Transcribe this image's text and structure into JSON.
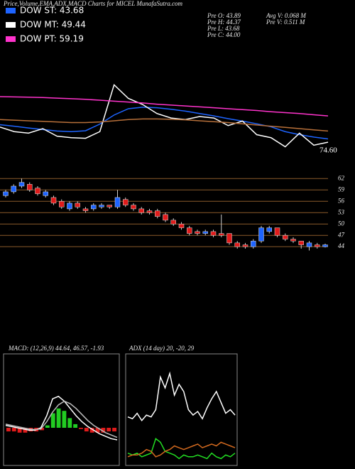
{
  "chart_data": [
    {
      "type": "line",
      "title": "Price,Volume,EMA,ADX,MACD Charts for MICEL MunafaSutra.com",
      "stats": [
        "Pre O: 43.89",
        "Pre H: 44.37",
        "Pre L: 43.68",
        "Pre C: 44.00",
        "Avg V: 0.068 M",
        "Pre V: 0.511 M"
      ],
      "annotation": "74.60",
      "ylim": [
        74,
        110
      ],
      "series": [
        {
          "name": "DOW ST: 43.68",
          "color": "#1e64ff",
          "values": [
            83.3,
            82.8,
            82.2,
            81.7,
            81.2,
            81.0,
            81.3,
            83.5,
            86.5,
            88.6,
            89.1,
            88.9,
            88.4,
            87.8,
            87.0,
            86.2,
            85.3,
            84.5,
            83.6,
            82.6,
            81.0,
            80.0,
            79.2,
            78.6
          ]
        },
        {
          "name": "DOW MT: 49.44",
          "color": "#ffffff",
          "values": [
            82.5,
            81.0,
            80.5,
            82.0,
            79.5,
            79.0,
            78.8,
            81.0,
            96.5,
            92.0,
            90.0,
            87.0,
            85.5,
            85.0,
            86.0,
            85.5,
            83.0,
            84.5,
            80.0,
            79.0,
            76.0,
            80.5,
            76.5,
            77.5
          ]
        },
        {
          "name": "DOW PT: 59.19",
          "color": "#ff33cc",
          "values": [
            92.6,
            92.5,
            92.4,
            92.3,
            92.1,
            91.9,
            91.7,
            91.4,
            91.1,
            90.8,
            90.5,
            90.1,
            89.8,
            89.5,
            89.2,
            88.9,
            88.6,
            88.3,
            88.0,
            87.6,
            87.3,
            87.0,
            86.6,
            86.2
          ]
        },
        {
          "color": "#b8703a",
          "values": [
            85.0,
            84.8,
            84.6,
            84.4,
            84.2,
            84.0,
            84.0,
            84.2,
            84.6,
            85.0,
            85.2,
            85.2,
            85.1,
            84.9,
            84.6,
            84.3,
            84.0,
            83.6,
            83.2,
            82.8,
            82.4,
            82.0,
            81.6,
            81.2
          ]
        }
      ]
    },
    {
      "type": "candlestick",
      "up_color": "#1e64ff",
      "down_color": "#e01b1b",
      "grid": true,
      "grid_color": "#8a5a2b",
      "ylim": [
        20,
        66
      ],
      "yticks": [
        44,
        47,
        50,
        53,
        56,
        59,
        62
      ],
      "open": [
        57.5,
        58.5,
        60,
        60.5,
        59.5,
        57.5,
        57,
        56,
        54,
        55.5,
        54,
        54,
        54.5,
        55,
        54.5,
        56.5,
        55,
        54,
        53.5,
        53.5,
        52.5,
        51,
        50,
        49,
        48,
        47.5,
        48,
        47.5,
        47.5,
        45,
        44.5,
        44,
        45.5,
        48,
        49,
        47,
        46,
        45.5,
        44,
        44.5,
        44
      ],
      "high": [
        59,
        60.5,
        62,
        61,
        60,
        59,
        57.5,
        56.5,
        56,
        56,
        54.5,
        55.5,
        55.5,
        55,
        59,
        57,
        55.5,
        54.5,
        54,
        54,
        53,
        51.5,
        50.5,
        49.5,
        48.5,
        48.5,
        48.5,
        52.5,
        47.5,
        45.5,
        45,
        46,
        49.5,
        49.5,
        49,
        47.5,
        46.5,
        45.5,
        45.5,
        45,
        44.8
      ],
      "low": [
        57,
        58,
        59.5,
        58.5,
        57.5,
        57,
        55,
        54,
        53.5,
        54,
        53,
        53.5,
        54,
        54,
        54,
        54.5,
        53.5,
        52.5,
        52.5,
        51.5,
        50.5,
        49.5,
        48.5,
        47,
        47,
        47,
        46.5,
        46.5,
        44.5,
        43.5,
        43.5,
        43.5,
        45,
        47.5,
        46.5,
        45.5,
        45,
        43.5,
        43,
        43.5,
        43.8
      ],
      "close": [
        58.5,
        60,
        61,
        59,
        58,
        58.5,
        55.5,
        54.5,
        55.5,
        54.5,
        53.5,
        55,
        55,
        54.5,
        57,
        55,
        54,
        53,
        53,
        52,
        51,
        50,
        49,
        47.5,
        47.5,
        48,
        47,
        47,
        45,
        44,
        44,
        45.5,
        49,
        49,
        47,
        46,
        45.5,
        44.5,
        45,
        44,
        44.5
      ]
    },
    {
      "type": "macd",
      "title": "MACD: (12,26,9) 44.64, 46.57, -1.93",
      "ylim": [
        -3,
        6
      ],
      "pos_color": "#22cc22",
      "neg_color": "#e01b1b",
      "histogram": [
        -0.3,
        -0.3,
        -0.4,
        -0.4,
        -0.3,
        -0.3,
        -0.2,
        0.2,
        1.2,
        1.6,
        1.4,
        0.8,
        0.3,
        -0.1,
        -0.3,
        -0.4,
        -0.4,
        -0.4,
        -0.3,
        -0.3
      ],
      "series": [
        {
          "color": "#ffffff",
          "values": [
            0.2,
            0.1,
            0,
            -0.1,
            -0.2,
            -0.2,
            0,
            1.0,
            2.4,
            2.6,
            2.2,
            1.6,
            1.0,
            0.5,
            0.1,
            -0.2,
            -0.5,
            -0.7,
            -0.9,
            -1.0
          ]
        },
        {
          "color": "#bbbbbb",
          "values": [
            0.3,
            0.2,
            0.1,
            0,
            -0.1,
            -0.15,
            -0.1,
            0.5,
            1.3,
            1.9,
            2.2,
            2.0,
            1.6,
            1.1,
            0.6,
            0.2,
            -0.1,
            -0.4,
            -0.6,
            -0.8
          ]
        }
      ]
    },
    {
      "type": "line",
      "title": "ADX (14 day) 20, -20, 29",
      "ylim": [
        0,
        60
      ],
      "series": [
        {
          "color": "#ffffff",
          "values": [
            26,
            25,
            28,
            24,
            27,
            26,
            30,
            48,
            42,
            50,
            38,
            44,
            40,
            30,
            27,
            29,
            25,
            31,
            36,
            40,
            34,
            28,
            30,
            27
          ]
        },
        {
          "color": "#22dd22",
          "values": [
            6,
            5,
            6,
            4,
            5,
            6,
            14,
            12,
            7,
            6,
            5,
            3,
            5,
            4,
            4,
            5,
            4,
            3,
            6,
            4,
            3,
            5,
            4,
            6
          ]
        },
        {
          "color": "#d2691e",
          "values": [
            4,
            5,
            5,
            6,
            8,
            7,
            4,
            5,
            7,
            8,
            10,
            9,
            8,
            9,
            10,
            11,
            9,
            10,
            11,
            10,
            12,
            11,
            10,
            9
          ]
        }
      ]
    }
  ]
}
